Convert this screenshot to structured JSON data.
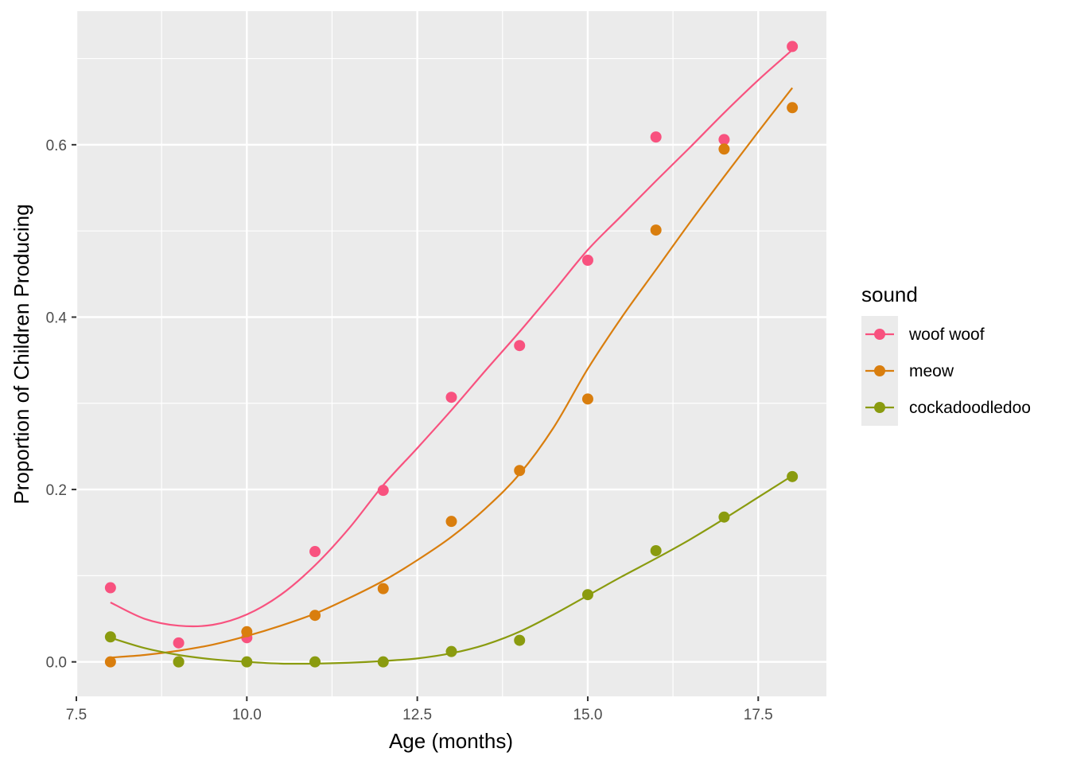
{
  "chart_data": {
    "type": "scatter",
    "title": "",
    "xlabel": "Age (months)",
    "ylabel": "Proportion of Children Producing",
    "xlim": [
      7.5,
      18.5
    ],
    "ylim": [
      -0.04,
      0.755
    ],
    "x_ticks": [
      7.5,
      10.0,
      12.5,
      15.0,
      17.5
    ],
    "x_tick_labels": [
      "7.5",
      "10.0",
      "12.5",
      "15.0",
      "17.5"
    ],
    "y_ticks": [
      0.0,
      0.2,
      0.4,
      0.6
    ],
    "y_tick_labels": [
      "0.0",
      "0.2",
      "0.4",
      "0.6"
    ],
    "grid": true,
    "legend": {
      "title": "sound",
      "position": "right"
    },
    "series": [
      {
        "name": "woof woof",
        "color": "#F8527F",
        "x": [
          8,
          9,
          10,
          11,
          12,
          13,
          14,
          15,
          16,
          17,
          18
        ],
        "y": [
          0.086,
          0.022,
          0.028,
          0.128,
          0.199,
          0.307,
          0.367,
          0.466,
          0.609,
          0.606,
          0.714
        ],
        "smooth_x": [
          8,
          8.5,
          9,
          9.5,
          10,
          10.5,
          11,
          11.5,
          12,
          12.5,
          13,
          13.5,
          14,
          14.5,
          15,
          15.5,
          16,
          16.5,
          17,
          17.5,
          18
        ],
        "smooth_y": [
          0.069,
          0.05,
          0.042,
          0.043,
          0.055,
          0.078,
          0.112,
          0.155,
          0.205,
          0.248,
          0.292,
          0.338,
          0.383,
          0.43,
          0.478,
          0.518,
          0.558,
          0.597,
          0.637,
          0.675,
          0.71
        ]
      },
      {
        "name": "meow",
        "color": "#D97E0E",
        "x": [
          8,
          9,
          10,
          11,
          12,
          13,
          14,
          15,
          16,
          17,
          18
        ],
        "y": [
          0.0,
          0.0,
          0.035,
          0.054,
          0.085,
          0.163,
          0.222,
          0.305,
          0.501,
          0.595,
          0.643
        ],
        "smooth_x": [
          8,
          8.5,
          9,
          9.5,
          10,
          10.5,
          11,
          11.5,
          12,
          12.5,
          13,
          13.5,
          14,
          14.5,
          15,
          15.5,
          16,
          16.5,
          17,
          17.5,
          18
        ],
        "smooth_y": [
          0.005,
          0.008,
          0.013,
          0.02,
          0.03,
          0.042,
          0.056,
          0.074,
          0.094,
          0.118,
          0.145,
          0.178,
          0.218,
          0.272,
          0.34,
          0.4,
          0.455,
          0.51,
          0.563,
          0.615,
          0.666
        ]
      },
      {
        "name": "cockadoodledoo",
        "color": "#8A9B0F",
        "x": [
          8,
          9,
          10,
          11,
          12,
          13,
          14,
          15,
          16,
          17,
          18
        ],
        "y": [
          0.029,
          0.0,
          0.0,
          0.0,
          0.0,
          0.012,
          0.025,
          0.078,
          0.129,
          0.168,
          0.215
        ],
        "smooth_x": [
          8,
          8.5,
          9,
          9.5,
          10,
          10.5,
          11,
          11.5,
          12,
          12.5,
          13,
          13.5,
          14,
          14.5,
          15,
          15.5,
          16,
          16.5,
          17,
          17.5,
          18
        ],
        "smooth_y": [
          0.028,
          0.016,
          0.008,
          0.003,
          0.0,
          -0.002,
          -0.002,
          -0.001,
          0.001,
          0.004,
          0.01,
          0.02,
          0.035,
          0.055,
          0.077,
          0.099,
          0.12,
          0.142,
          0.166,
          0.191,
          0.216
        ]
      }
    ]
  }
}
